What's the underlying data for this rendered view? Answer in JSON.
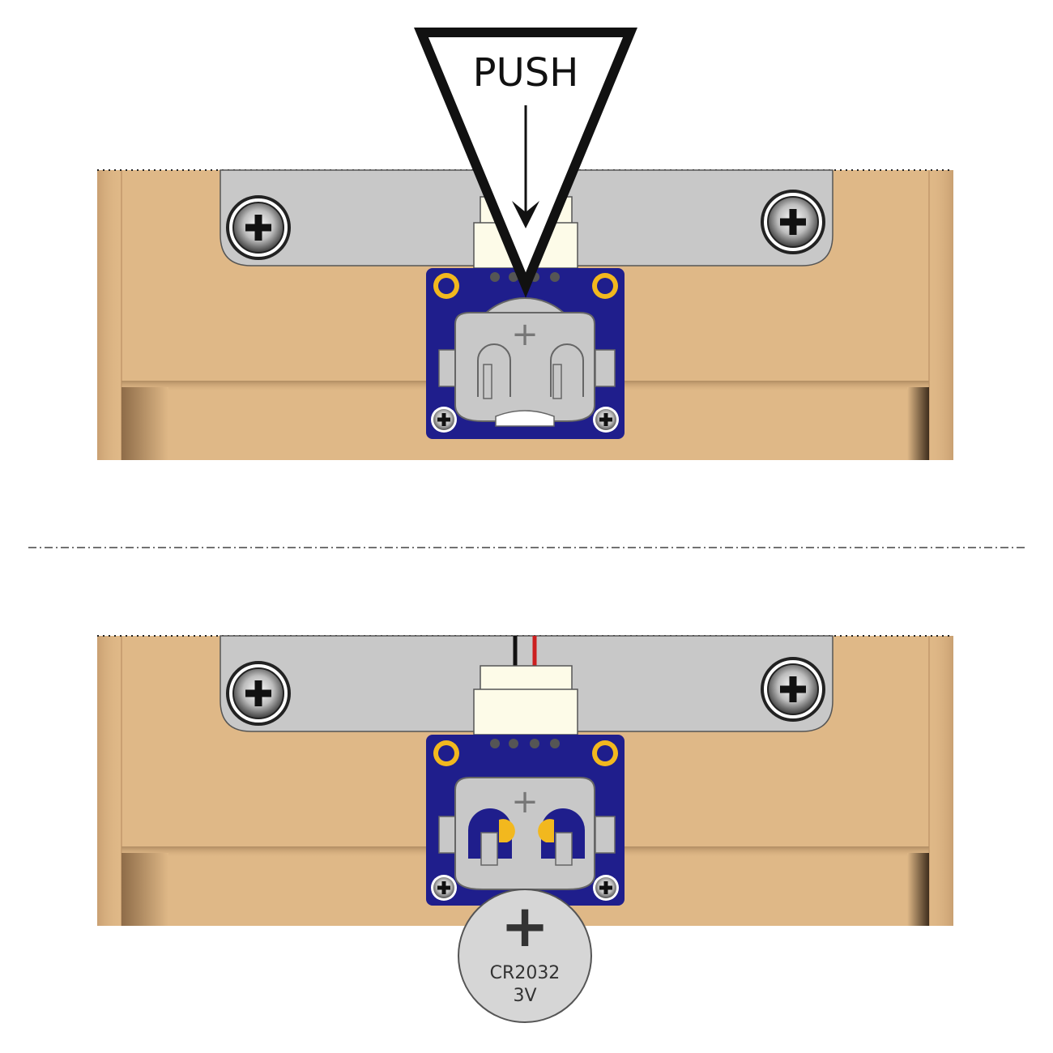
{
  "labels": {
    "push": "PUSH",
    "holder_plus": "+",
    "coin_plus": "+",
    "coin_model": "CR2032",
    "coin_voltage": "3V"
  },
  "colors": {
    "wood": "#dfb887",
    "wood_dark": "#a88560",
    "bracket": "#c8c8c8",
    "pcb": "#1f1e8c",
    "pad_gold": "#f2b81e",
    "connector": "#fdfbe8",
    "wire_red": "#cc1f1f",
    "wire_black": "#111111",
    "coin": "#d6d6d6"
  },
  "icons": {
    "screw": "phillips-screw-icon",
    "arrow": "down-arrow-icon"
  }
}
